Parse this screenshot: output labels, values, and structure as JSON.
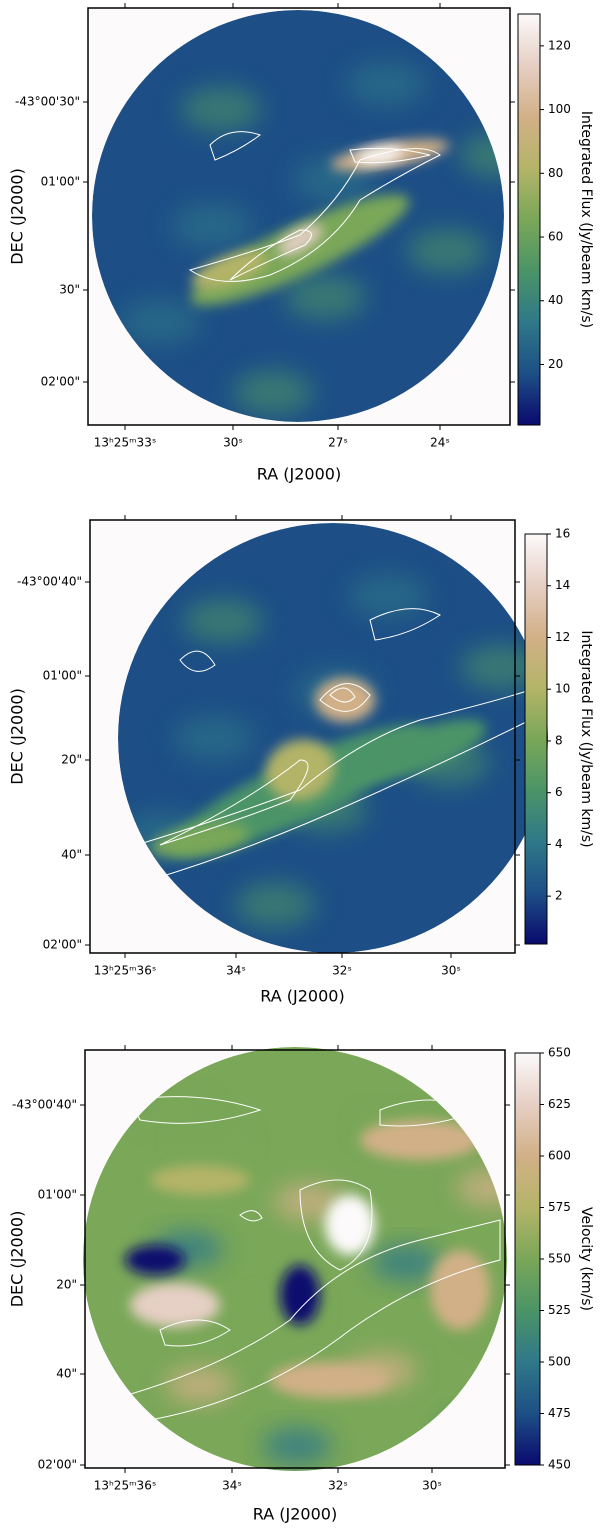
{
  "chart_data": [
    {
      "type": "image",
      "xlabel": "RA (J2000)",
      "ylabel": "DEC (J2000)",
      "xticks": [
        "13ʰ25ᵐ33ˢ",
        "30ˢ",
        "27ˢ",
        "24ˢ"
      ],
      "yticks": [
        "-43°00'30\"",
        "01'00\"",
        "30\"",
        "02'00\""
      ],
      "colorbar": {
        "label": "Integrated Flux (Jy/beam km/s)",
        "lim": [
          1,
          130
        ],
        "ticks": [
          20,
          40,
          60,
          80,
          100,
          120
        ]
      },
      "colors": [
        "#0a0a6e",
        "#1d4f86",
        "#2f7889",
        "#4b9467",
        "#7aa758",
        "#b4b468",
        "#d2b087",
        "#e6cfc4",
        "#fcfafa"
      ]
    },
    {
      "type": "image",
      "xlabel": "RA (J2000)",
      "ylabel": "DEC (J2000)",
      "xticks": [
        "13ʰ25ᵐ36ˢ",
        "34ˢ",
        "32ˢ",
        "30ˢ"
      ],
      "yticks": [
        "-43°00'40\"",
        "01'00\"",
        "20\"",
        "40\"",
        "02'00\""
      ],
      "colorbar": {
        "label": "Integrated Flux (Jy/beam km/s)",
        "lim": [
          0.15,
          16
        ],
        "ticks": [
          2,
          4,
          6,
          8,
          10,
          12,
          14,
          16
        ]
      },
      "colors": [
        "#0a0a6e",
        "#1d4f86",
        "#2f7889",
        "#4b9467",
        "#7aa758",
        "#b4b468",
        "#d2b087",
        "#e6cfc4",
        "#fcfafa"
      ]
    },
    {
      "type": "image",
      "xlabel": "RA (J2000)",
      "ylabel": "DEC (J2000)",
      "xticks": [
        "13ʰ25ᵐ36ˢ",
        "34ˢ",
        "32ˢ",
        "30ˢ"
      ],
      "yticks": [
        "-43°00'40\"",
        "01'00\"",
        "20\"",
        "40\"",
        "02'00\""
      ],
      "colorbar": {
        "label": "Velocity (km/s)",
        "lim": [
          450,
          650
        ],
        "ticks": [
          450,
          475,
          500,
          525,
          550,
          575,
          600,
          625,
          650
        ]
      },
      "colors": [
        "#0a0a6e",
        "#1d4f86",
        "#2f7889",
        "#4b9467",
        "#7aa758",
        "#b4b468",
        "#d2b087",
        "#e6cfc4",
        "#fcfafa"
      ]
    }
  ]
}
